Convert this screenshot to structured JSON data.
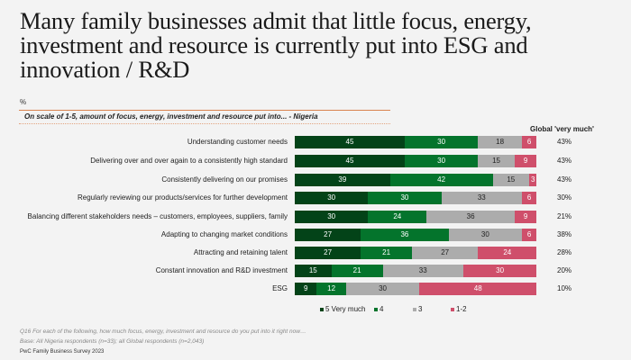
{
  "title": "Many family businesses admit that little focus, energy, investment and resource is currently put into ESG and innovation / R&D",
  "footnotes": {
    "question": "Q16 For each of the following, how much focus, energy, investment and resource do you put into it right now…",
    "base": "Base: All Nigeria respondents (n=33); all Global respondents (n=2,043)",
    "source": "PwC Family Business Survey 2023"
  },
  "colors": {
    "very_much": "#034318",
    "four": "#04742c",
    "three": "#acacac",
    "one_two": "#cf4f6b",
    "rule": "#d9834f"
  },
  "chart_data": {
    "type": "bar",
    "orientation": "horizontal",
    "stacked": true,
    "title": "On scale of 1-5, amount of focus, energy, investment and resource put into... - Nigeria",
    "unit_label": "%",
    "xlim": [
      0,
      100
    ],
    "grid": false,
    "legend_position": "bottom",
    "categories": [
      "Understanding customer needs",
      "Delivering over and over again to a consistently high standard",
      "Consistently delivering on our promises",
      "Regularly reviewing our products/services for further development",
      "Balancing different stakeholders needs – customers, employees, suppliers, family",
      "Adapting to changing market conditions",
      "Attracting and retaining talent",
      "Constant innovation and R&D investment",
      "ESG"
    ],
    "series": [
      {
        "name": "5 Very much",
        "key": "s5",
        "values": [
          45,
          45,
          39,
          30,
          30,
          27,
          27,
          15,
          9
        ]
      },
      {
        "name": "4",
        "key": "s4",
        "values": [
          30,
          30,
          42,
          30,
          24,
          36,
          21,
          21,
          12
        ]
      },
      {
        "name": "3",
        "key": "s3",
        "values": [
          18,
          15,
          15,
          33,
          36,
          30,
          27,
          33,
          30
        ]
      },
      {
        "name": "1-2",
        "key": "s12",
        "values": [
          6,
          9,
          3,
          6,
          9,
          6,
          24,
          30,
          48
        ]
      }
    ],
    "global_header": "Global 'very much'",
    "global_very_much": [
      "43%",
      "43%",
      "43%",
      "30%",
      "21%",
      "38%",
      "28%",
      "20%",
      "10%"
    ]
  }
}
